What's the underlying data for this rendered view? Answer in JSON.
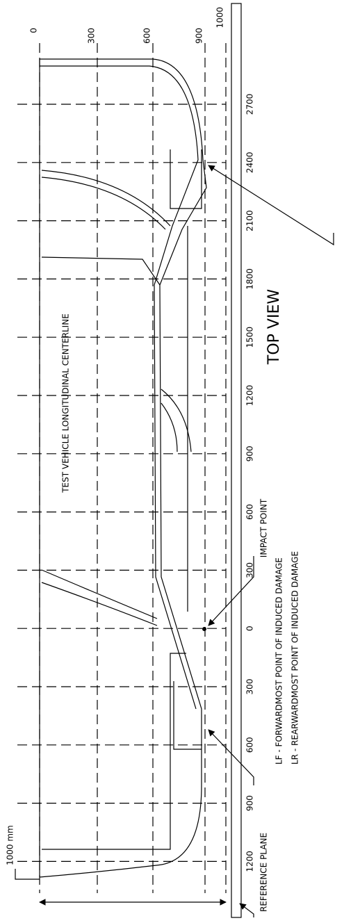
{
  "lateral_ticks": [
    "0",
    "300",
    "600",
    "900",
    "1000"
  ],
  "longitudinal_ticks": [
    "2700",
    "2400",
    "2100",
    "1800",
    "1500",
    "1200",
    "900",
    "600",
    "300",
    "0",
    "300",
    "600",
    "900",
    "1200"
  ],
  "centerline_label": "TEST VEHICLE LONGITUDINAL CENTERLINE",
  "view_label": "TOP VIEW",
  "impact_point": "IMPACT POINT",
  "lf_label": "LF - FORWARDMOST POINT OF INDUCED DAMAGE",
  "lr_label": "LR - REARWARDMOST POINT OF INDUCED DAMAGE",
  "reference_plane": "REFERENCE PLANE",
  "scale_label": "1000 mm"
}
